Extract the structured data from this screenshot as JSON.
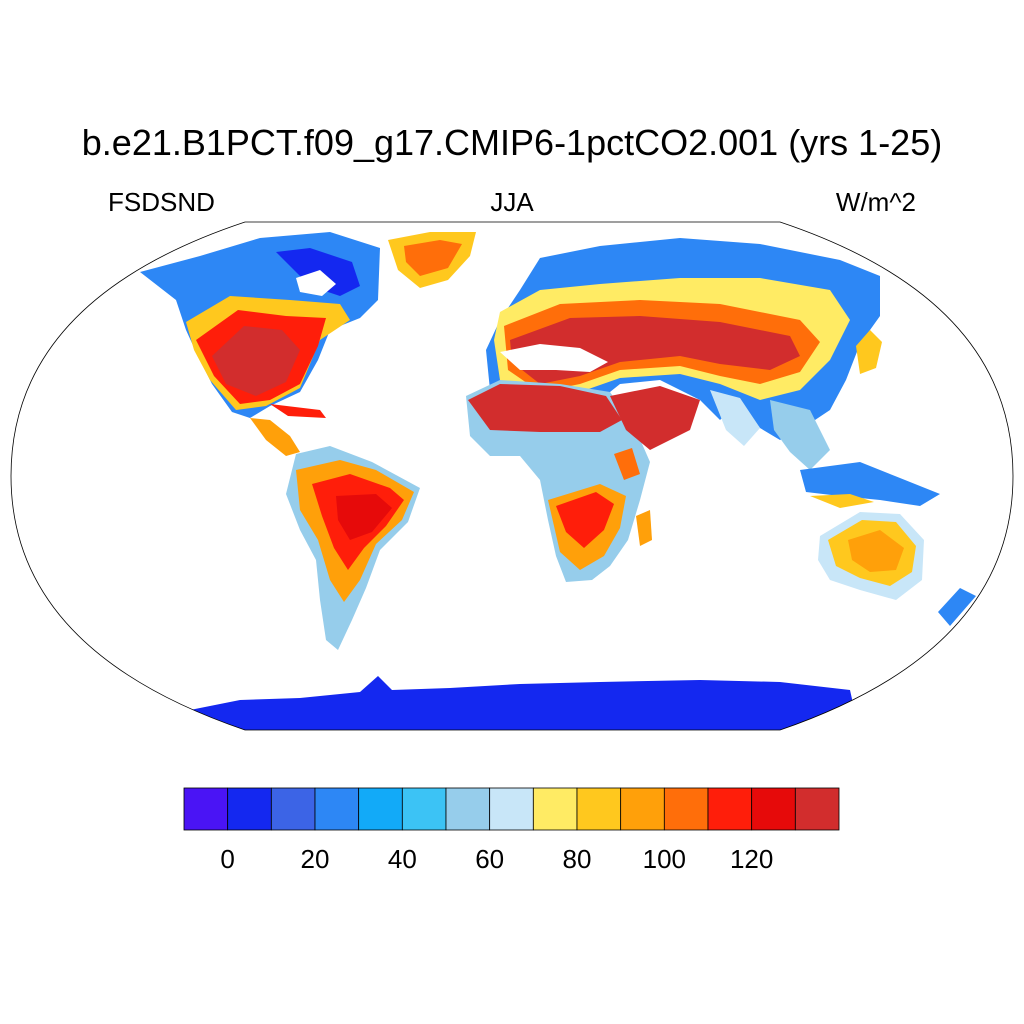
{
  "title": "b.e21.B1PCT.f09_g17.CMIP6-1pctCO2.001 (yrs 1-25)",
  "left_label": "FSDSND",
  "center_label": "JJA",
  "right_label": "W/m^2",
  "colorbar": {
    "colors": [
      "#4a14f5",
      "#1428f0",
      "#3c64e6",
      "#2d87f5",
      "#12aaf8",
      "#3cc3f5",
      "#96cdeb",
      "#c8e6f8",
      "#ffeb64",
      "#ffc81e",
      "#ffa00a",
      "#ff6e0a",
      "#ff1e0a",
      "#e60a0a",
      "#d22d2d"
    ],
    "tick_labels": [
      "0",
      "20",
      "40",
      "60",
      "80",
      "100",
      "120"
    ]
  }
}
